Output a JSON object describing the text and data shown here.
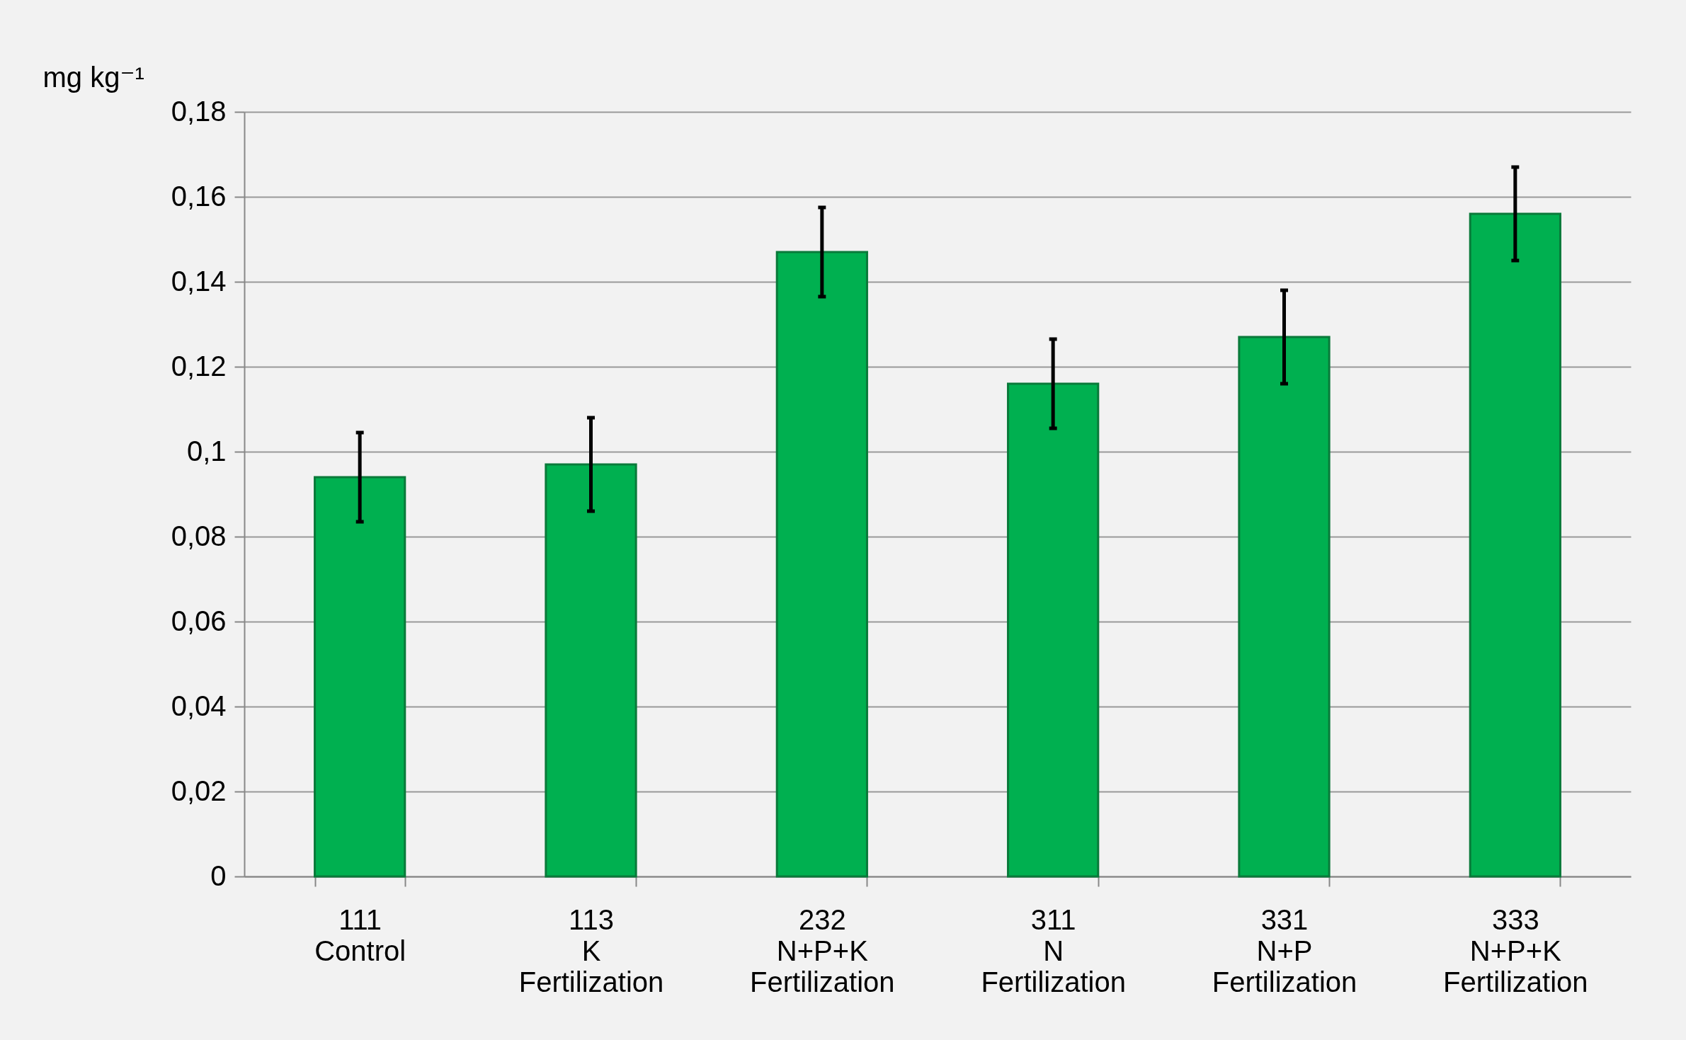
{
  "chart_data": {
    "type": "bar",
    "ylabel": "mg kg⁻¹",
    "categories": [
      "111\nControl",
      "113\nK\nFertilization",
      "232\nN+P+K\nFertilization",
      "311\nN\nFertilization",
      "331\nN+P\nFertilization",
      "333\nN+P+K\nFertilization"
    ],
    "values": [
      0.094,
      0.097,
      0.147,
      0.116,
      0.127,
      0.156
    ],
    "errors": [
      0.0105,
      0.011,
      0.0105,
      0.0105,
      0.011,
      0.011
    ],
    "color": "#00b050",
    "ylim": [
      0,
      0.18
    ],
    "yticks": [
      {
        "value": 0,
        "label": "0"
      },
      {
        "value": 0.02,
        "label": "0,02"
      },
      {
        "value": 0.04,
        "label": "0,04"
      },
      {
        "value": 0.06,
        "label": "0,06"
      },
      {
        "value": 0.08,
        "label": "0,08"
      },
      {
        "value": 0.1,
        "label": "0,1"
      },
      {
        "value": 0.12,
        "label": "0,12"
      },
      {
        "value": 0.14,
        "label": "0,14"
      },
      {
        "value": 0.16,
        "label": "0,16"
      },
      {
        "value": 0.18,
        "label": "0,18"
      }
    ],
    "grid": "y"
  }
}
